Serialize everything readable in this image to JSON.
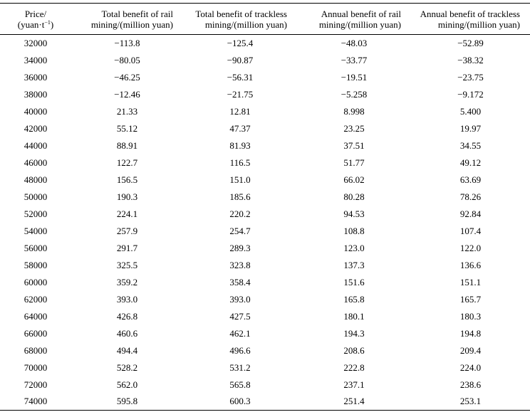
{
  "table": {
    "headers": [
      {
        "line1": "Price/",
        "line2_prefix": "(yuan·t",
        "line2_sup": "−1",
        "line2_suffix": ")"
      },
      {
        "line1": "Total benefit of rail",
        "line2": "mining/(million yuan)"
      },
      {
        "line1": "Total benefit of trackless",
        "line2": "mining/(million yuan)"
      },
      {
        "line1": "Annual benefit of rail",
        "line2": "mining/(million yuan)"
      },
      {
        "line1": "Annual benefit of trackless",
        "line2": "mining/(million yuan)"
      }
    ],
    "rows": [
      [
        "32000",
        "−113.8",
        "−125.4",
        "−48.03",
        "−52.89"
      ],
      [
        "34000",
        "−80.05",
        "−90.87",
        "−33.77",
        "−38.32"
      ],
      [
        "36000",
        "−46.25",
        "−56.31",
        "−19.51",
        "−23.75"
      ],
      [
        "38000",
        "−12.46",
        "−21.75",
        "−5.258",
        "−9.172"
      ],
      [
        "40000",
        "21.33",
        "12.81",
        "8.998",
        "5.400"
      ],
      [
        "42000",
        "55.12",
        "47.37",
        "23.25",
        "19.97"
      ],
      [
        "44000",
        "88.91",
        "81.93",
        "37.51",
        "34.55"
      ],
      [
        "46000",
        "122.7",
        "116.5",
        "51.77",
        "49.12"
      ],
      [
        "48000",
        "156.5",
        "151.0",
        "66.02",
        "63.69"
      ],
      [
        "50000",
        "190.3",
        "185.6",
        "80.28",
        "78.26"
      ],
      [
        "52000",
        "224.1",
        "220.2",
        "94.53",
        "92.84"
      ],
      [
        "54000",
        "257.9",
        "254.7",
        "108.8",
        "107.4"
      ],
      [
        "56000",
        "291.7",
        "289.3",
        "123.0",
        "122.0"
      ],
      [
        "58000",
        "325.5",
        "323.8",
        "137.3",
        "136.6"
      ],
      [
        "60000",
        "359.2",
        "358.4",
        "151.6",
        "151.1"
      ],
      [
        "62000",
        "393.0",
        "393.0",
        "165.8",
        "165.7"
      ],
      [
        "64000",
        "426.8",
        "427.5",
        "180.1",
        "180.3"
      ],
      [
        "66000",
        "460.6",
        "462.1",
        "194.3",
        "194.8"
      ],
      [
        "68000",
        "494.4",
        "496.6",
        "208.6",
        "209.4"
      ],
      [
        "70000",
        "528.2",
        "531.2",
        "222.8",
        "224.0"
      ],
      [
        "72000",
        "562.0",
        "565.8",
        "237.1",
        "238.6"
      ],
      [
        "74000",
        "595.8",
        "600.3",
        "251.4",
        "253.1"
      ]
    ]
  }
}
